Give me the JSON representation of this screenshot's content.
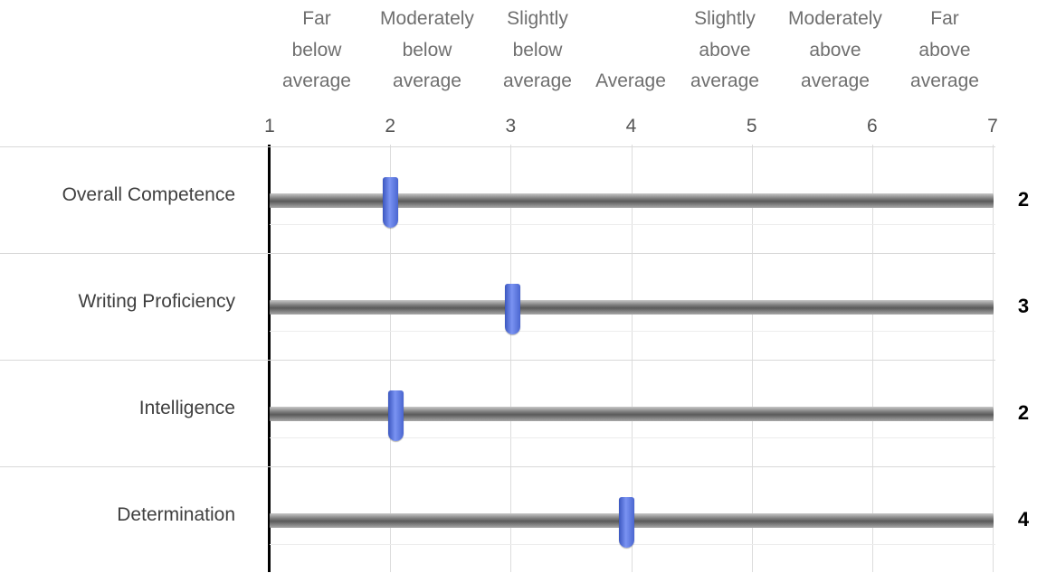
{
  "scale_labels": [
    "Far\nbelow\naverage",
    "Moderately\nbelow\naverage",
    "Slightly\nbelow\naverage",
    "Average",
    "Slightly\nabove\naverage",
    "Moderately\nabove\naverage",
    "Far\nabove\naverage"
  ],
  "ticks": [
    "1",
    "2",
    "3",
    "4",
    "5",
    "6",
    "7"
  ],
  "scale": {
    "min": 1,
    "max": 7
  },
  "rows": [
    {
      "label": "Overall Competence",
      "value": 2.0,
      "value_label": "2"
    },
    {
      "label": "Writing Proficiency",
      "value": 3.02,
      "value_label": "3"
    },
    {
      "label": "Intelligence",
      "value": 2.05,
      "value_label": "2"
    },
    {
      "label": "Determination",
      "value": 3.96,
      "value_label": "4"
    }
  ],
  "colors": {
    "handle": "#4a66d0",
    "track": "#7a7a7a",
    "axis": "#000000",
    "label_text": "#3f3f3f",
    "header_text": "#6f6f6f"
  }
}
